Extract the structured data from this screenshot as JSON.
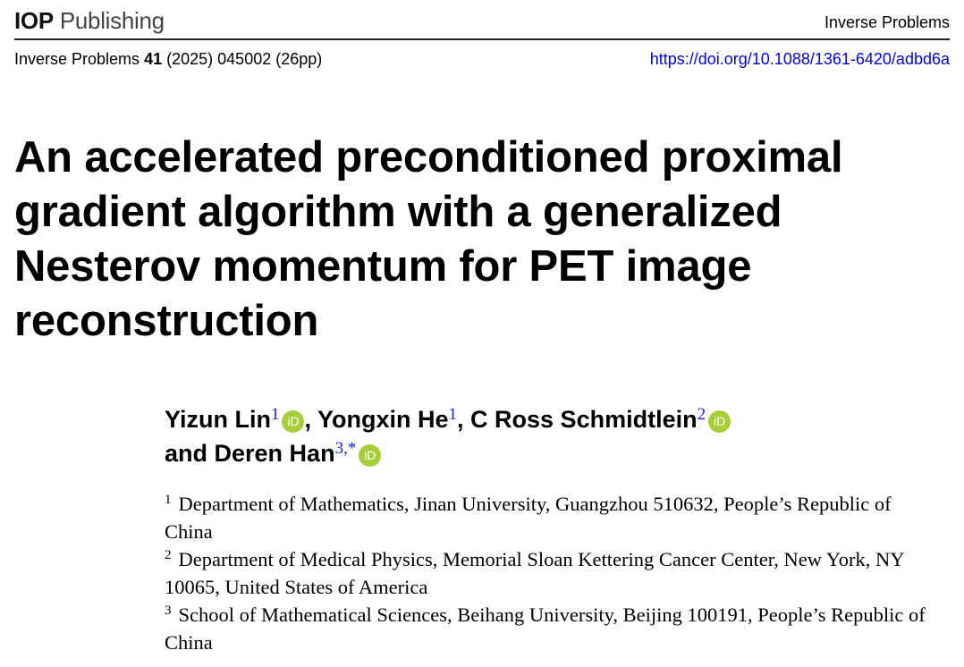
{
  "header": {
    "publisher_logo_bold": "IOP",
    "publisher_logo_text": "Publishing",
    "journal_name": "Inverse Problems"
  },
  "citation": {
    "journal": "Inverse Problems",
    "volume": "41",
    "rest": "(2025) 045002 (26pp)",
    "doi": "https://doi.org/10.1088/1361-6420/adbd6a"
  },
  "title": "An accelerated preconditioned proximal gradient algorithm with a generalized Nesterov momentum for PET image reconstruction",
  "authors": [
    {
      "name": "Yizun Lin",
      "aff": "1",
      "orcid": true
    },
    {
      "name": "Yongxin He",
      "aff": "1",
      "orcid": false
    },
    {
      "name": "C Ross Schmidtlein",
      "aff": "2",
      "orcid": true
    },
    {
      "name": "Deren Han",
      "aff": "3,*",
      "orcid": true
    }
  ],
  "author_joiners": {
    "comma": ", ",
    "and": "and "
  },
  "orcid_label": "iD",
  "affiliations": [
    {
      "num": "1",
      "text": "Department of Mathematics, Jinan University, Guangzhou 510632, People’s Republic of China"
    },
    {
      "num": "2",
      "text": "Department of Medical Physics, Memorial Sloan Kettering Cancer Center, New York, NY 10065, United States of America"
    },
    {
      "num": "3",
      "text": "School of Mathematical Sciences, Beihang University, Beijing 100191, People’s Republic of China"
    }
  ],
  "colors": {
    "link": "#0000ee",
    "orcid": "#a6ce39"
  }
}
